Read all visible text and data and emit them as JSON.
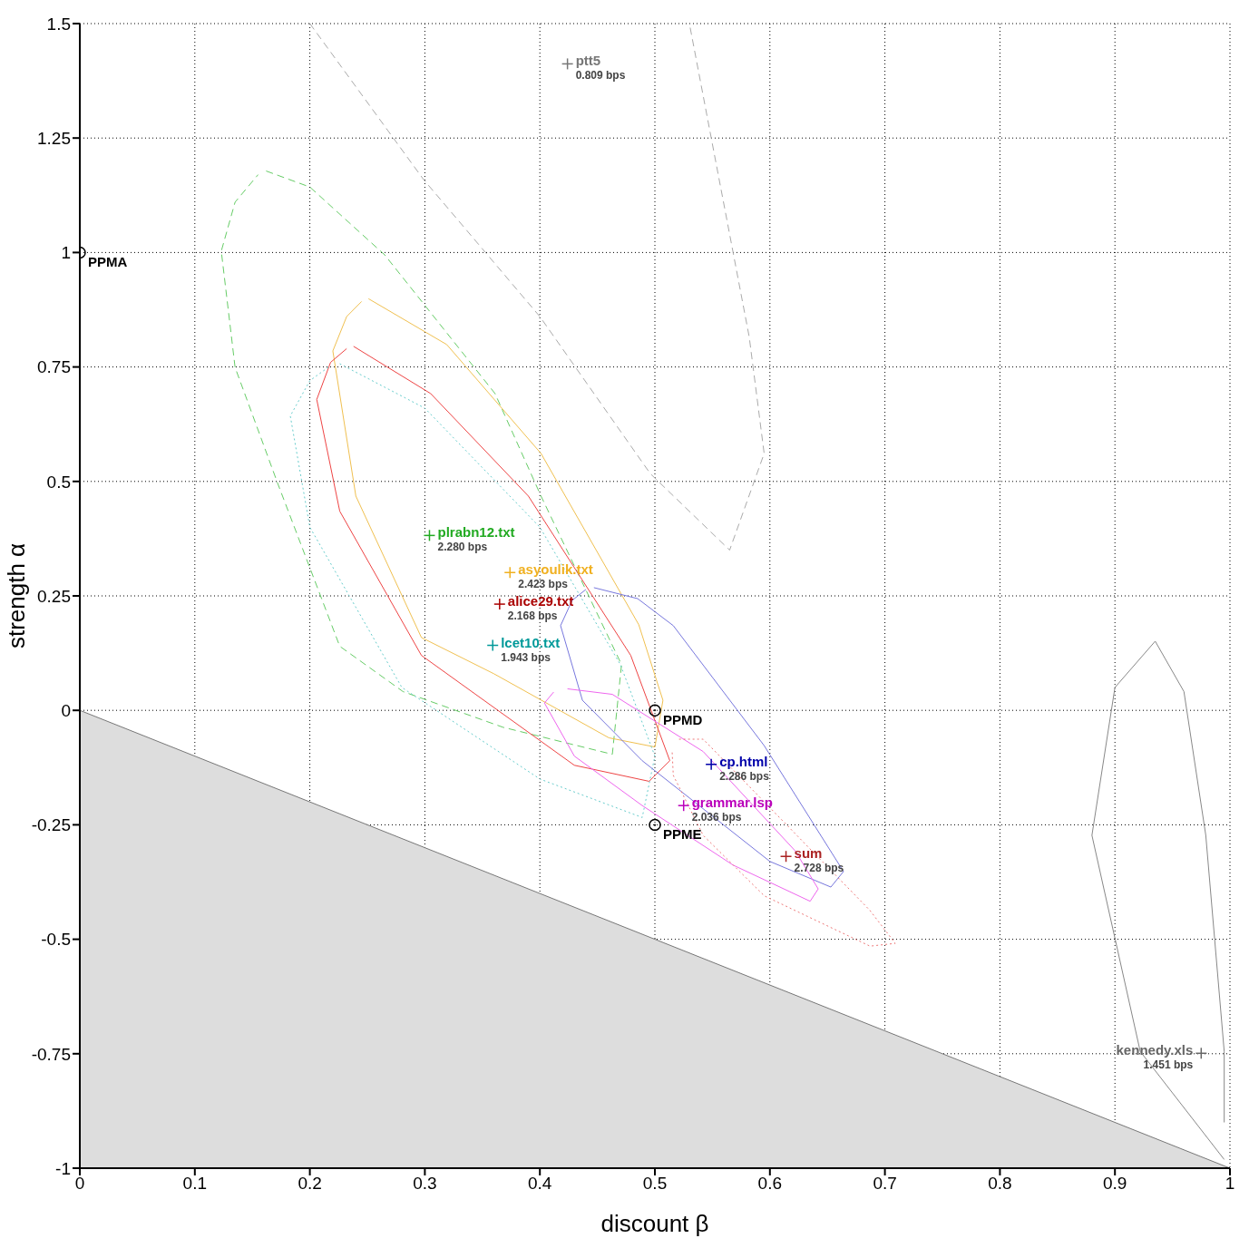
{
  "chart_data": {
    "type": "scatter",
    "xlabel": "discount β",
    "ylabel": "strength α",
    "xlim": [
      0,
      1
    ],
    "ylim": [
      -1,
      1.5
    ],
    "xticks": [
      0,
      0.1,
      0.2,
      0.3,
      0.4,
      0.5,
      0.6,
      0.7,
      0.8,
      0.9,
      1
    ],
    "yticks": [
      -1,
      -0.75,
      -0.5,
      -0.25,
      0,
      0.25,
      0.5,
      0.75,
      1,
      1.25,
      1.5
    ],
    "grid": true,
    "annotations": [
      {
        "text": "2.280 bps",
        "x": 0.304,
        "y": 0.382
      },
      {
        "text": "2.423 bps",
        "x": 0.374,
        "y": 0.301
      },
      {
        "text": "2.168 bps",
        "x": 0.365,
        "y": 0.232
      },
      {
        "text": "1.943 bps",
        "x": 0.359,
        "y": 0.142
      },
      {
        "text": "2.286 bps",
        "x": 0.549,
        "y": -0.118
      },
      {
        "text": "2.036 bps",
        "x": 0.525,
        "y": -0.208
      },
      {
        "text": "2.728 bps",
        "x": 0.614,
        "y": -0.319
      },
      {
        "text": "0.809 bps",
        "x": 0.424,
        "y": 1.412
      },
      {
        "text": "1.451 bps",
        "x": 0.975,
        "y": -0.749
      }
    ],
    "series": [
      {
        "type": "area",
        "color": "#dddddd",
        "x": [
          0,
          1
        ],
        "values": [
          0,
          -1
        ]
      },
      {
        "name": "plrabn12.txt",
        "color": "#22aa22",
        "marker": "cross",
        "x": [
          0.304
        ],
        "values": [
          0.382
        ]
      },
      {
        "name": "asyoulik.txt",
        "color": "#f0b020",
        "marker": "cross",
        "x": [
          0.374
        ],
        "values": [
          0.301
        ]
      },
      {
        "name": "alice29.txt",
        "color": "#aa0000",
        "marker": "cross",
        "x": [
          0.365
        ],
        "values": [
          0.232
        ]
      },
      {
        "name": "lcet10.txt",
        "color": "#009999",
        "marker": "cross",
        "x": [
          0.359
        ],
        "values": [
          0.142
        ]
      },
      {
        "name": "cp.html",
        "color": "#0000aa",
        "marker": "cross",
        "x": [
          0.549
        ],
        "values": [
          -0.118
        ]
      },
      {
        "name": "grammar.lsp",
        "color": "#bb00bb",
        "marker": "cross",
        "x": [
          0.525
        ],
        "values": [
          -0.208
        ]
      },
      {
        "name": "sum",
        "color": "#aa2222",
        "marker": "cross",
        "x": [
          0.614
        ],
        "values": [
          -0.319
        ]
      },
      {
        "name": "ptt5",
        "color": "#777777",
        "marker": "cross",
        "x": [
          0.424
        ],
        "values": [
          1.412
        ]
      },
      {
        "name": "kennedy.xls",
        "color": "#666666",
        "marker": "cross",
        "x": [
          0.975
        ],
        "values": [
          -0.749
        ]
      },
      {
        "name": "PPMA",
        "color": "#000000",
        "marker": "circle",
        "x": [
          0
        ],
        "values": [
          1
        ]
      },
      {
        "name": "PPMD",
        "color": "#000000",
        "marker": "circle",
        "x": [
          0.5
        ],
        "values": [
          0
        ]
      },
      {
        "name": "PPME",
        "color": "#000000",
        "marker": "circle",
        "x": [
          0.5
        ],
        "values": [
          -0.25
        ]
      },
      {
        "type": "line",
        "color": "#66cc66",
        "line_style": "dashed",
        "x": [
          0.162,
          0.2,
          0.265,
          0.361,
          0.401,
          0.471,
          0.463,
          0.368,
          0.281,
          0.226,
          0.172,
          0.135,
          0.123,
          0.135,
          0.155
        ],
        "values": [
          1.178,
          1.143,
          0.995,
          0.692,
          0.468,
          0.1,
          -0.096,
          -0.037,
          0.041,
          0.14,
          0.496,
          0.749,
          1.003,
          1.11,
          1.17
        ]
      },
      {
        "type": "line",
        "color": "#f0c050",
        "line_style": "solid",
        "x": [
          0.251,
          0.319,
          0.401,
          0.486,
          0.507,
          0.5,
          0.46,
          0.36,
          0.297,
          0.24,
          0.22,
          0.232,
          0.245
        ],
        "values": [
          0.899,
          0.799,
          0.561,
          0.187,
          0.022,
          -0.08,
          -0.06,
          0.08,
          0.159,
          0.468,
          0.785,
          0.86,
          0.893
        ]
      },
      {
        "type": "line",
        "color": "#ee4444",
        "line_style": "solid",
        "x": [
          0.238,
          0.305,
          0.39,
          0.479,
          0.513,
          0.495,
          0.43,
          0.297,
          0.226,
          0.206,
          0.218,
          0.232
        ],
        "values": [
          0.795,
          0.692,
          0.468,
          0.12,
          -0.11,
          -0.155,
          -0.12,
          0.12,
          0.435,
          0.679,
          0.76,
          0.79
        ]
      },
      {
        "type": "line",
        "color": "#66cccc",
        "line_style": "dotted",
        "x": [
          0.226,
          0.3,
          0.4,
          0.47,
          0.5,
          0.489,
          0.4,
          0.28,
          0.2,
          0.183,
          0.2,
          0.218
        ],
        "values": [
          0.757,
          0.66,
          0.4,
          0.1,
          -0.1,
          -0.234,
          -0.15,
          0.05,
          0.4,
          0.643,
          0.72,
          0.753
        ]
      },
      {
        "type": "line",
        "color": "#7777dd",
        "line_style": "solid",
        "x": [
          0.447,
          0.485,
          0.516,
          0.595,
          0.664,
          0.653,
          0.6,
          0.489,
          0.437,
          0.418,
          0.428,
          0.44
        ],
        "values": [
          0.268,
          0.244,
          0.185,
          -0.077,
          -0.352,
          -0.386,
          -0.33,
          -0.11,
          0.022,
          0.185,
          0.24,
          0.264
        ]
      },
      {
        "type": "line",
        "color": "#ee66ee",
        "line_style": "solid",
        "x": [
          0.424,
          0.463,
          0.542,
          0.622,
          0.642,
          0.635,
          0.568,
          0.489,
          0.43,
          0.404,
          0.412
        ],
        "values": [
          0.047,
          0.035,
          -0.09,
          -0.307,
          -0.39,
          -0.417,
          -0.338,
          -0.208,
          -0.1,
          0.016,
          0.04
        ]
      },
      {
        "type": "line",
        "color": "#ee7777",
        "line_style": "dotted",
        "x": [
          0.521,
          0.542,
          0.687,
          0.709,
          0.687,
          0.595,
          0.542,
          0.516,
          0.515
        ],
        "values": [
          -0.063,
          -0.063,
          -0.437,
          -0.509,
          -0.515,
          -0.405,
          -0.273,
          -0.142,
          -0.09
        ]
      },
      {
        "type": "line",
        "color": "#aaaaaa",
        "line_style": "dashed",
        "x": [
          0.2,
          0.299,
          0.4,
          0.496,
          0.565,
          0.595,
          0.582,
          0.53
        ],
        "values": [
          1.5,
          1.159,
          0.86,
          0.517,
          0.35,
          0.561,
          0.816,
          1.5
        ]
      },
      {
        "type": "line",
        "color": "#888888",
        "line_style": "solid",
        "x": [
          0.995,
          0.922,
          0.88,
          0.9,
          0.935,
          0.96,
          0.979,
          0.995,
          0.995
        ],
        "values": [
          -0.981,
          -0.745,
          -0.273,
          0.05,
          0.151,
          0.041,
          -0.273,
          -0.745,
          -0.9
        ]
      }
    ]
  }
}
